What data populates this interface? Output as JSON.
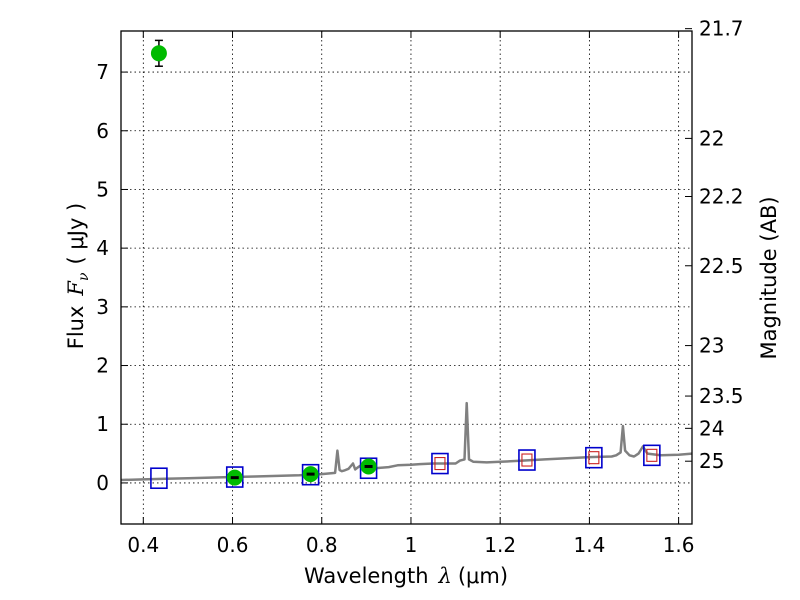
{
  "chart_data": {
    "type": "scatter",
    "xlabel_text": "Wavelength",
    "xlabel_symbol": "λ",
    "xlabel_unit": "(μm)",
    "ylabel_text": "Flux",
    "ylabel_symbol": "F",
    "ylabel_subscript": "ν",
    "ylabel_unit": "( μJy )",
    "y2label": "Magnitude (AB)",
    "xlim": [
      0.35,
      1.63
    ],
    "ylim": [
      -0.7,
      7.7
    ],
    "grid": true,
    "x_ticks": [
      0.4,
      0.6,
      0.8,
      1.0,
      1.2,
      1.4,
      1.6
    ],
    "x_tick_labels": [
      "0.4",
      "0.6",
      "0.8",
      "1",
      "1.2",
      "1.4",
      "1.6"
    ],
    "y_ticks": [
      0,
      1,
      2,
      3,
      4,
      5,
      6,
      7
    ],
    "y_tick_labels": [
      "0",
      "1",
      "2",
      "3",
      "4",
      "5",
      "6",
      "7"
    ],
    "y2_ticks": [
      {
        "label": "21.7",
        "flux": 7.74
      },
      {
        "label": "22",
        "flux": 5.87
      },
      {
        "label": "22.2",
        "flux": 4.88
      },
      {
        "label": "22.5",
        "flux": 3.7
      },
      {
        "label": "23",
        "flux": 2.34
      },
      {
        "label": "23.5",
        "flux": 1.48
      },
      {
        "label": "24",
        "flux": 0.93
      },
      {
        "label": "25",
        "flux": 0.37
      }
    ],
    "series": [
      {
        "marker": "line",
        "color": "#808080",
        "x": [
          0.35,
          0.4,
          0.45,
          0.5,
          0.55,
          0.6,
          0.65,
          0.7,
          0.75,
          0.8,
          0.83,
          0.835,
          0.84,
          0.845,
          0.85,
          0.86,
          0.87,
          0.875,
          0.88,
          0.89,
          0.9,
          0.92,
          0.95,
          0.97,
          1.0,
          1.02,
          1.05,
          1.08,
          1.1,
          1.11,
          1.12,
          1.125,
          1.13,
          1.14,
          1.17,
          1.2,
          1.25,
          1.3,
          1.35,
          1.4,
          1.45,
          1.46,
          1.47,
          1.475,
          1.48,
          1.49,
          1.5,
          1.51,
          1.52,
          1.53,
          1.56,
          1.6,
          1.63
        ],
        "y": [
          0.05,
          0.06,
          0.07,
          0.08,
          0.09,
          0.1,
          0.11,
          0.12,
          0.13,
          0.15,
          0.17,
          0.55,
          0.22,
          0.2,
          0.21,
          0.24,
          0.33,
          0.23,
          0.26,
          0.31,
          0.28,
          0.25,
          0.27,
          0.3,
          0.31,
          0.32,
          0.33,
          0.33,
          0.33,
          0.38,
          0.4,
          1.36,
          0.4,
          0.36,
          0.35,
          0.36,
          0.38,
          0.4,
          0.42,
          0.44,
          0.45,
          0.47,
          0.52,
          0.97,
          0.55,
          0.47,
          0.45,
          0.5,
          0.62,
          0.5,
          0.47,
          0.48,
          0.5
        ]
      },
      {
        "marker": "square",
        "color": "#0000cc",
        "x": [
          0.435,
          0.605,
          0.775,
          0.905,
          1.065,
          1.26,
          1.41,
          1.54
        ],
        "y": [
          0.08,
          0.1,
          0.14,
          0.25,
          0.33,
          0.39,
          0.43,
          0.47
        ]
      },
      {
        "marker": "small-square",
        "color": "#cc2222",
        "x": [
          1.065,
          1.26,
          1.41,
          1.54
        ],
        "y": [
          0.33,
          0.39,
          0.43,
          0.47
        ]
      },
      {
        "marker": "circle",
        "color": "#00bb00",
        "x": [
          0.435,
          0.605,
          0.775,
          0.905
        ],
        "y": [
          7.32,
          0.09,
          0.15,
          0.28
        ],
        "yerr": [
          0.22,
          0.05,
          0.05,
          0.05
        ]
      }
    ]
  }
}
